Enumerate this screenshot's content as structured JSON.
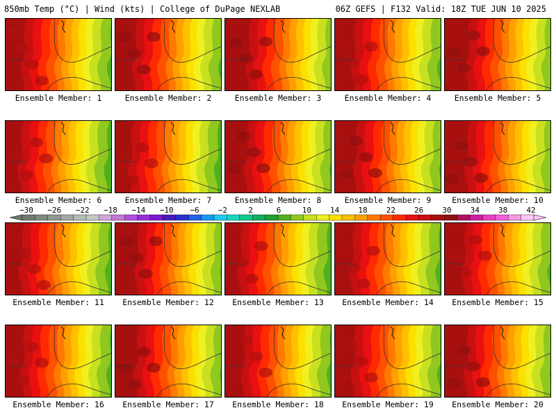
{
  "header": {
    "left": "850mb Temp (°C) | Wind (kts) | College of DuPage NEXLAB",
    "right": "06Z GEFS | F132 Valid: 18Z TUE JUN 10 2025"
  },
  "member_label_prefix": "Ensemble Member: ",
  "members": [
    {
      "number": "1",
      "warmth": 0.55
    },
    {
      "number": "2",
      "warmth": 0.62
    },
    {
      "number": "3",
      "warmth": 0.8
    },
    {
      "number": "4",
      "warmth": 0.58
    },
    {
      "number": "5",
      "warmth": 0.78
    },
    {
      "number": "6",
      "warmth": 0.4
    },
    {
      "number": "7",
      "warmth": 0.42
    },
    {
      "number": "8",
      "warmth": 0.7
    },
    {
      "number": "9",
      "warmth": 0.68
    },
    {
      "number": "10",
      "warmth": 0.75
    },
    {
      "number": "11",
      "warmth": 0.45
    },
    {
      "number": "12",
      "warmth": 0.72
    },
    {
      "number": "13",
      "warmth": 0.4
    },
    {
      "number": "14",
      "warmth": 0.5
    },
    {
      "number": "15",
      "warmth": 0.6
    },
    {
      "number": "16",
      "warmth": 0.52
    },
    {
      "number": "17",
      "warmth": 0.7
    },
    {
      "number": "18",
      "warmth": 0.55
    },
    {
      "number": "19",
      "warmth": 0.58
    },
    {
      "number": "20",
      "warmth": 0.72
    }
  ],
  "colorbar": {
    "tick_labels": [
      "−30",
      "−26",
      "−22",
      "−18",
      "−14",
      "−10",
      "−6",
      "−2",
      "2",
      "6",
      "10",
      "14",
      "18",
      "22",
      "26",
      "30",
      "34",
      "38",
      "42"
    ],
    "colors": [
      "#6f7a70",
      "#7f8a80",
      "#909a90",
      "#a2aaa2",
      "#b3bdb3",
      "#c2c8c2",
      "#d0a8d8",
      "#c57ad6",
      "#b44ee0",
      "#9c2cd8",
      "#7a1ad0",
      "#4a1ab8",
      "#2830d0",
      "#1e62e6",
      "#1898f0",
      "#20c8f0",
      "#18d8c0",
      "#10c890",
      "#10b060",
      "#20a030",
      "#50b020",
      "#90c820",
      "#c8e020",
      "#f0f020",
      "#fce000",
      "#ffc000",
      "#ffa000",
      "#ff7a00",
      "#ff5000",
      "#ff2a00",
      "#e81010",
      "#c81010",
      "#a81010",
      "#901010",
      "#b01060",
      "#d020a0",
      "#e840c0",
      "#f060d8",
      "#f898e8",
      "#fcc8f4"
    ]
  }
}
